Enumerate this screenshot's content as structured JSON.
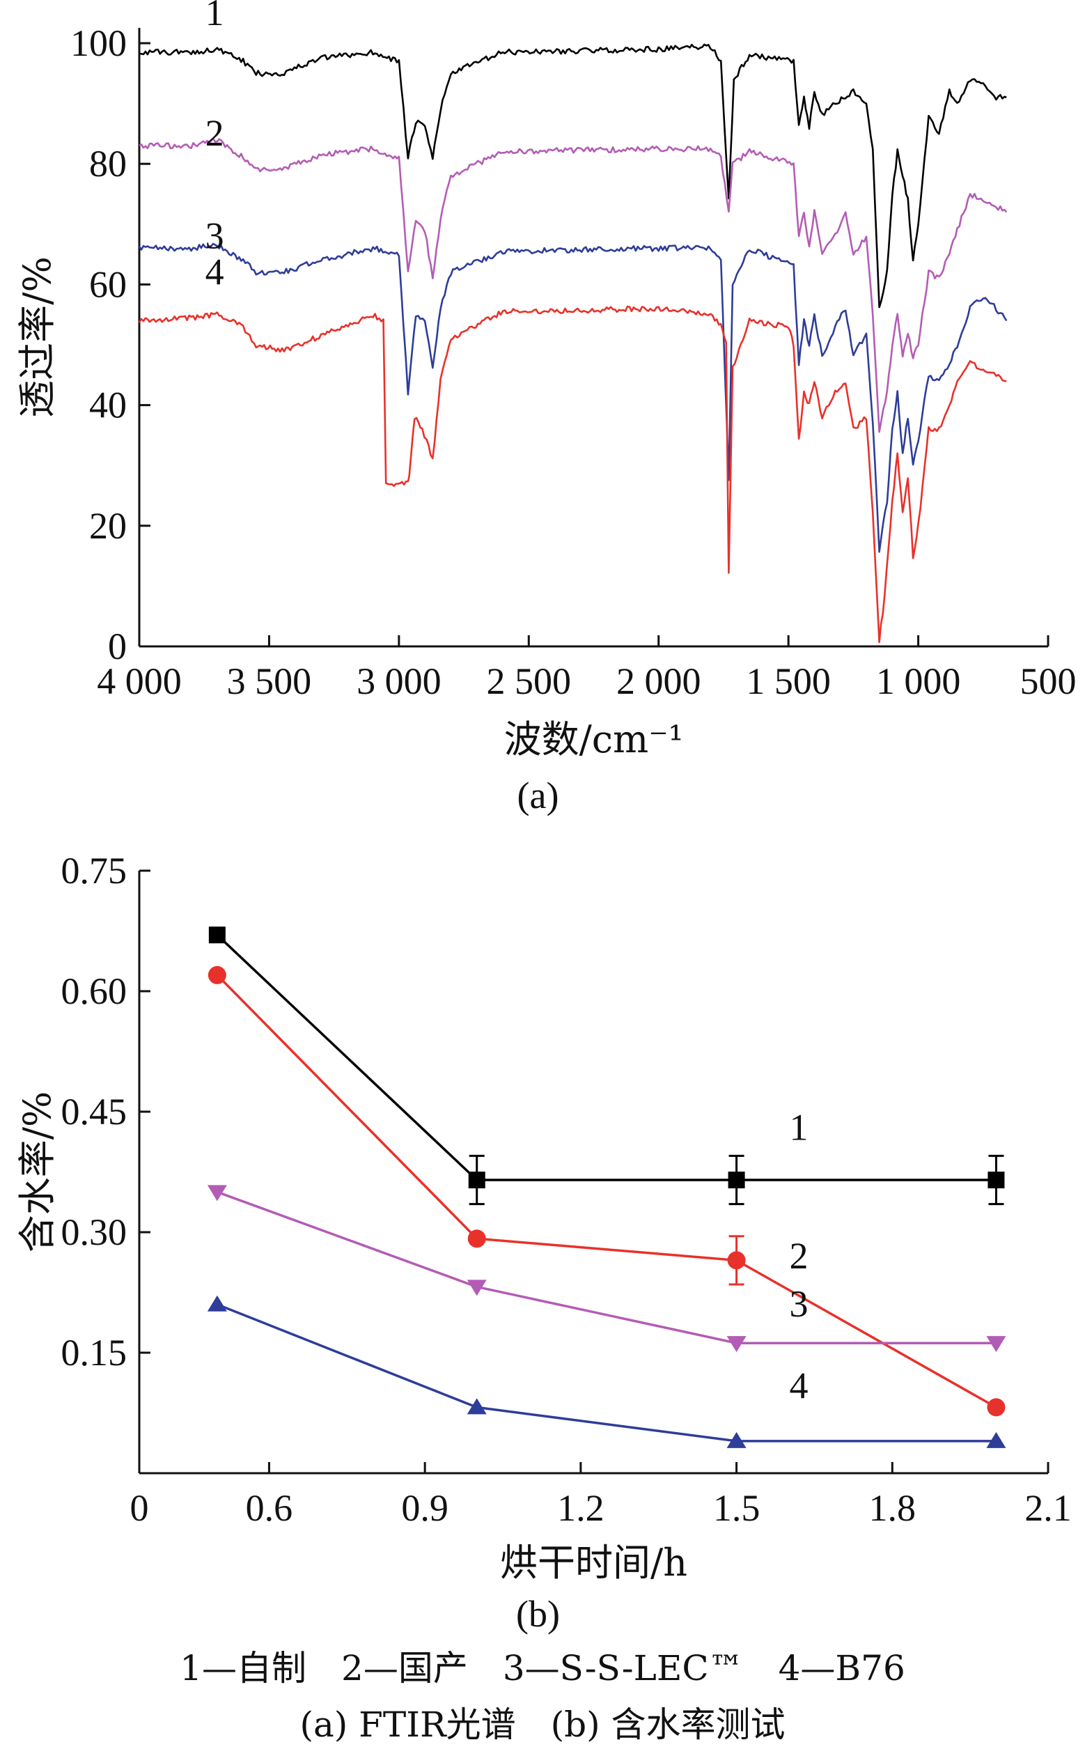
{
  "colors": {
    "1": "#000000",
    "2": "#b35cb5",
    "3": "#2e3d99",
    "4": "#e8312a"
  },
  "caption": {
    "legend": "1—自制　2—国产　3—S-S-LEC™　4—B76",
    "panels": "(a) FTIR光谱　(b) 含水率测试"
  },
  "chart_data": [
    {
      "id": "a",
      "type": "line",
      "panel_label": "(a)",
      "xlabel": "波数/cm⁻¹",
      "ylabel": "透过率/%",
      "xlim": [
        4000,
        500
      ],
      "ylim": [
        0,
        100
      ],
      "x_reversed": true,
      "xticks": [
        {
          "v": 4000,
          "t": "4 000"
        },
        {
          "v": 3500,
          "t": "3 500"
        },
        {
          "v": 3000,
          "t": "3 000"
        },
        {
          "v": 2500,
          "t": "2 500"
        },
        {
          "v": 2000,
          "t": "2 000"
        },
        {
          "v": 1500,
          "t": "1 500"
        },
        {
          "v": 1000,
          "t": "1 000"
        },
        {
          "v": 500,
          "t": "500"
        }
      ],
      "yticks": [
        {
          "v": 0,
          "t": "0"
        },
        {
          "v": 20,
          "t": "20"
        },
        {
          "v": 40,
          "t": "40"
        },
        {
          "v": 60,
          "t": "60"
        },
        {
          "v": 80,
          "t": "80"
        },
        {
          "v": 100,
          "t": "100"
        }
      ],
      "series": [
        {
          "name": "1",
          "color_key": "1",
          "label_at": [
            3710,
            103
          ],
          "points": [
            [
              4000,
              98.5
            ],
            [
              3800,
              98.5
            ],
            [
              3700,
              99
            ],
            [
              3600,
              97
            ],
            [
              3550,
              95
            ],
            [
              3450,
              95
            ],
            [
              3300,
              97.5
            ],
            [
              3100,
              98.5
            ],
            [
              3000,
              97
            ],
            [
              2965,
              81
            ],
            [
              2935,
              87
            ],
            [
              2900,
              86
            ],
            [
              2870,
              81
            ],
            [
              2840,
              89
            ],
            [
              2800,
              95
            ],
            [
              2600,
              98.5
            ],
            [
              2000,
              99
            ],
            [
              1800,
              99.5
            ],
            [
              1760,
              97
            ],
            [
              1730,
              74
            ],
            [
              1710,
              94
            ],
            [
              1650,
              98
            ],
            [
              1480,
              97
            ],
            [
              1460,
              86
            ],
            [
              1440,
              91
            ],
            [
              1420,
              86
            ],
            [
              1400,
              92
            ],
            [
              1370,
              88
            ],
            [
              1320,
              90
            ],
            [
              1250,
              92
            ],
            [
              1200,
              90
            ],
            [
              1175,
              82
            ],
            [
              1150,
              56
            ],
            [
              1120,
              62
            ],
            [
              1100,
              75
            ],
            [
              1080,
              82
            ],
            [
              1060,
              78
            ],
            [
              1040,
              74
            ],
            [
              1020,
              64
            ],
            [
              1000,
              70
            ],
            [
              960,
              88
            ],
            [
              920,
              85
            ],
            [
              880,
              92
            ],
            [
              850,
              90
            ],
            [
              800,
              94
            ],
            [
              750,
              93
            ],
            [
              700,
              91
            ],
            [
              660,
              91
            ]
          ]
        },
        {
          "name": "2",
          "color_key": "2",
          "label_at": [
            3710,
            83
          ],
          "points": [
            [
              4000,
              83
            ],
            [
              3800,
              83
            ],
            [
              3700,
              84
            ],
            [
              3600,
              81
            ],
            [
              3550,
              79
            ],
            [
              3450,
              79
            ],
            [
              3300,
              81.5
            ],
            [
              3100,
              82.5
            ],
            [
              3000,
              81
            ],
            [
              2965,
              62
            ],
            [
              2935,
              71
            ],
            [
              2900,
              69
            ],
            [
              2870,
              61
            ],
            [
              2840,
              71
            ],
            [
              2800,
              78
            ],
            [
              2600,
              82
            ],
            [
              2000,
              82.5
            ],
            [
              1800,
              82.5
            ],
            [
              1760,
              81
            ],
            [
              1730,
              72
            ],
            [
              1715,
              80
            ],
            [
              1650,
              82
            ],
            [
              1480,
              80
            ],
            [
              1460,
              68
            ],
            [
              1440,
              72
            ],
            [
              1420,
              66
            ],
            [
              1400,
              72
            ],
            [
              1370,
              65
            ],
            [
              1320,
              68
            ],
            [
              1280,
              72
            ],
            [
              1250,
              65
            ],
            [
              1200,
              68
            ],
            [
              1175,
              55
            ],
            [
              1150,
              36
            ],
            [
              1120,
              42
            ],
            [
              1100,
              50
            ],
            [
              1080,
              55
            ],
            [
              1060,
              48
            ],
            [
              1040,
              52
            ],
            [
              1020,
              48
            ],
            [
              1000,
              50
            ],
            [
              960,
              62
            ],
            [
              920,
              61
            ],
            [
              880,
              65
            ],
            [
              850,
              69
            ],
            [
              800,
              75
            ],
            [
              750,
              74
            ],
            [
              700,
              73
            ],
            [
              660,
              72
            ]
          ]
        },
        {
          "name": "3",
          "color_key": "3",
          "label_at": [
            3710,
            66
          ],
          "points": [
            [
              4000,
              66
            ],
            [
              3800,
              66
            ],
            [
              3700,
              66.5
            ],
            [
              3600,
              64
            ],
            [
              3550,
              62
            ],
            [
              3450,
              62
            ],
            [
              3300,
              64
            ],
            [
              3100,
              66
            ],
            [
              3000,
              65
            ],
            [
              2965,
              42
            ],
            [
              2935,
              55
            ],
            [
              2900,
              54
            ],
            [
              2870,
              46
            ],
            [
              2840,
              56
            ],
            [
              2800,
              62
            ],
            [
              2600,
              65.5
            ],
            [
              2000,
              66
            ],
            [
              1800,
              66
            ],
            [
              1760,
              64
            ],
            [
              1730,
              28
            ],
            [
              1715,
              60
            ],
            [
              1650,
              66
            ],
            [
              1480,
              63
            ],
            [
              1460,
              47
            ],
            [
              1440,
              54
            ],
            [
              1420,
              50
            ],
            [
              1400,
              55
            ],
            [
              1370,
              48
            ],
            [
              1320,
              53
            ],
            [
              1280,
              56
            ],
            [
              1250,
              48
            ],
            [
              1200,
              52
            ],
            [
              1175,
              37
            ],
            [
              1150,
              16
            ],
            [
              1120,
              24
            ],
            [
              1100,
              36
            ],
            [
              1080,
              42
            ],
            [
              1060,
              32
            ],
            [
              1040,
              38
            ],
            [
              1020,
              30
            ],
            [
              1000,
              34
            ],
            [
              960,
              45
            ],
            [
              920,
              44
            ],
            [
              880,
              47
            ],
            [
              850,
              50
            ],
            [
              800,
              56
            ],
            [
              750,
              58
            ],
            [
              700,
              56
            ],
            [
              660,
              54
            ]
          ]
        },
        {
          "name": "4",
          "color_key": "4",
          "label_at": [
            3710,
            60
          ],
          "points": [
            [
              4000,
              54
            ],
            [
              3800,
              54.5
            ],
            [
              3700,
              55
            ],
            [
              3600,
              53
            ],
            [
              3550,
              50
            ],
            [
              3450,
              49
            ],
            [
              3300,
              51.5
            ],
            [
              3100,
              55
            ],
            [
              3060,
              54
            ],
            [
              3050,
              27
            ],
            [
              2965,
              27
            ],
            [
              2960,
              28
            ],
            [
              2940,
              38
            ],
            [
              2910,
              36
            ],
            [
              2870,
              31
            ],
            [
              2840,
              44
            ],
            [
              2800,
              51
            ],
            [
              2600,
              55.5
            ],
            [
              2000,
              56
            ],
            [
              1800,
              55
            ],
            [
              1760,
              53
            ],
            [
              1740,
              50
            ],
            [
              1730,
              12
            ],
            [
              1715,
              46
            ],
            [
              1650,
              54
            ],
            [
              1500,
              53
            ],
            [
              1480,
              50
            ],
            [
              1460,
              34
            ],
            [
              1440,
              42
            ],
            [
              1420,
              40
            ],
            [
              1400,
              44
            ],
            [
              1370,
              38
            ],
            [
              1320,
              42
            ],
            [
              1280,
              44
            ],
            [
              1250,
              36
            ],
            [
              1200,
              38
            ],
            [
              1175,
              22
            ],
            [
              1150,
              1
            ],
            [
              1130,
              8
            ],
            [
              1100,
              24
            ],
            [
              1080,
              32
            ],
            [
              1060,
              22
            ],
            [
              1040,
              28
            ],
            [
              1020,
              15
            ],
            [
              1000,
              20
            ],
            [
              960,
              36
            ],
            [
              920,
              36
            ],
            [
              880,
              40
            ],
            [
              850,
              44
            ],
            [
              800,
              47
            ],
            [
              750,
              46
            ],
            [
              700,
              45
            ],
            [
              660,
              44
            ]
          ]
        }
      ]
    },
    {
      "id": "b",
      "type": "line",
      "panel_label": "(b)",
      "xlabel": "烘干时间/h",
      "ylabel": "含水率/%",
      "xlim": [
        0.35,
        2.1
      ],
      "ylim": [
        0,
        0.75
      ],
      "xticks": [
        {
          "v": 0.35,
          "t": "0"
        },
        {
          "v": 0.6,
          "t": "0.6"
        },
        {
          "v": 0.9,
          "t": "0.9"
        },
        {
          "v": 1.2,
          "t": "1.2"
        },
        {
          "v": 1.5,
          "t": "1.5"
        },
        {
          "v": 1.8,
          "t": "1.8"
        },
        {
          "v": 2.1,
          "t": "2.1"
        }
      ],
      "yticks": [
        {
          "v": 0.15,
          "t": "0.15"
        },
        {
          "v": 0.3,
          "t": "0.30"
        },
        {
          "v": 0.45,
          "t": "0.45"
        },
        {
          "v": 0.6,
          "t": "0.60"
        },
        {
          "v": 0.75,
          "t": "0.75"
        }
      ],
      "x": [
        0.5,
        1.0,
        1.5,
        2.0
      ],
      "series": [
        {
          "name": "1",
          "color_key": "1",
          "marker": "square",
          "values": [
            0.67,
            0.365,
            0.365,
            0.365
          ],
          "errors": [
            0,
            0.03,
            0.03,
            0.03
          ],
          "label_at": [
            1.62,
            0.415
          ]
        },
        {
          "name": "2",
          "color_key": "4",
          "marker": "circle",
          "values": [
            0.62,
            0.292,
            0.265,
            0.082
          ],
          "errors": [
            0,
            0,
            0.03,
            0
          ],
          "label_at": [
            1.62,
            0.255
          ]
        },
        {
          "name": "3",
          "color_key": "2",
          "marker": "triangle-down",
          "values": [
            0.35,
            0.232,
            0.162,
            0.162
          ],
          "errors": [
            0,
            0,
            0,
            0
          ],
          "label_at": [
            1.62,
            0.195
          ]
        },
        {
          "name": "4",
          "color_key": "3",
          "marker": "triangle-up",
          "values": [
            0.21,
            0.082,
            0.04,
            0.04
          ],
          "errors": [
            0,
            0,
            0,
            0
          ],
          "label_at": [
            1.62,
            0.093
          ]
        }
      ]
    }
  ]
}
